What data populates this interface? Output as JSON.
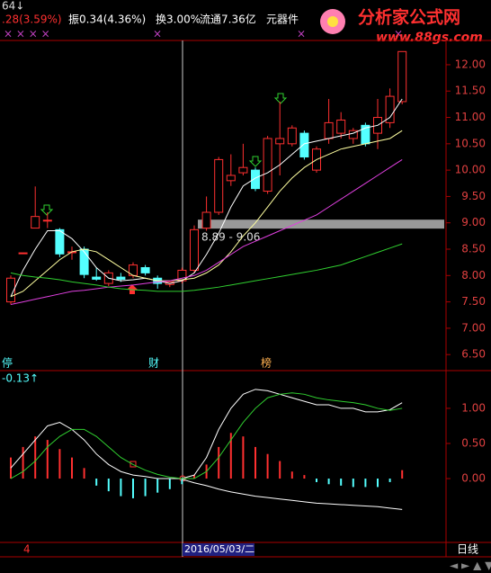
{
  "header": {
    "code": "64↓",
    "change": ".28(3.59%)",
    "amplitude": "振0.34(4.36%)",
    "turnover": "换3.00%",
    "float": "流通7.36亿",
    "sector": "元器件"
  },
  "watermark": {
    "title": "分析家公式网",
    "url": "www.88gs.com"
  },
  "chart_data": [
    {
      "type": "candlestick",
      "open": [
        7.5,
        8.43,
        8.9,
        9.05,
        8.87,
        8.45,
        8.5,
        7.97,
        7.85,
        7.97,
        8.0,
        8.15,
        7.95,
        7.83,
        7.9,
        8.1,
        8.9,
        9.2,
        9.8,
        9.95,
        10.0,
        9.6,
        10.5,
        10.5,
        10.7,
        10.0,
        10.6,
        10.7,
        10.6,
        10.85,
        10.7,
        10.9,
        11.3
      ],
      "high": [
        8.0,
        8.43,
        9.69,
        9.2,
        8.9,
        8.55,
        8.55,
        8.15,
        8.1,
        8.05,
        8.25,
        8.2,
        8.0,
        7.9,
        8.15,
        8.95,
        9.5,
        10.25,
        10.3,
        10.5,
        10.05,
        10.65,
        11.3,
        10.85,
        10.75,
        10.45,
        11.35,
        11.1,
        10.8,
        10.9,
        11.35,
        11.55,
        12.25
      ],
      "low": [
        7.45,
        8.43,
        8.9,
        8.9,
        8.35,
        8.3,
        7.95,
        7.9,
        7.8,
        7.88,
        7.95,
        8.0,
        7.75,
        7.78,
        7.85,
        8.05,
        8.85,
        9.15,
        9.7,
        9.9,
        9.6,
        9.55,
        9.9,
        10.45,
        10.2,
        9.95,
        10.5,
        10.6,
        10.5,
        10.45,
        10.4,
        10.8,
        11.25
      ],
      "close": [
        7.95,
        8.43,
        9.12,
        9.05,
        8.41,
        8.45,
        8.02,
        7.93,
        8.05,
        7.93,
        8.2,
        8.05,
        7.85,
        7.88,
        8.1,
        8.87,
        9.2,
        10.2,
        9.9,
        10.05,
        9.65,
        10.6,
        10.6,
        10.8,
        10.25,
        10.4,
        10.9,
        10.95,
        10.75,
        10.5,
        11.0,
        11.4,
        12.25
      ],
      "up_color": "#ff3030",
      "down_color": "#54ffff",
      "series": [
        {
          "color": "#ffffff",
          "values": [
            7.6,
            8.1,
            8.5,
            8.85,
            8.85,
            8.7,
            8.45,
            8.15,
            7.95,
            7.9,
            7.92,
            7.95,
            7.9,
            7.85,
            7.9,
            8.05,
            8.4,
            8.8,
            9.3,
            9.7,
            9.85,
            9.95,
            10.1,
            10.3,
            10.5,
            10.55,
            10.6,
            10.65,
            10.7,
            10.8,
            10.85,
            11.0,
            11.35
          ]
        },
        {
          "color": "#ffffa0",
          "values": [
            7.6,
            7.7,
            7.9,
            8.1,
            8.3,
            8.45,
            8.5,
            8.45,
            8.3,
            8.15,
            8.0,
            7.95,
            7.9,
            7.9,
            7.92,
            7.95,
            8.05,
            8.2,
            8.45,
            8.75,
            9.0,
            9.3,
            9.6,
            9.85,
            10.05,
            10.2,
            10.3,
            10.4,
            10.45,
            10.5,
            10.55,
            10.6,
            10.75
          ]
        },
        {
          "color": "#e040e0",
          "values": [
            7.45,
            7.5,
            7.55,
            7.6,
            7.65,
            7.7,
            7.72,
            7.75,
            7.78,
            7.8,
            7.82,
            7.85,
            7.88,
            7.9,
            7.95,
            8.0,
            8.1,
            8.25,
            8.4,
            8.55,
            8.65,
            8.75,
            8.85,
            8.95,
            9.05,
            9.15,
            9.3,
            9.45,
            9.6,
            9.75,
            9.9,
            10.05,
            10.2
          ]
        },
        {
          "color": "#30d030",
          "values": [
            8.05,
            8.0,
            7.97,
            7.95,
            7.92,
            7.88,
            7.85,
            7.82,
            7.78,
            7.75,
            7.73,
            7.72,
            7.7,
            7.7,
            7.7,
            7.72,
            7.75,
            7.78,
            7.82,
            7.86,
            7.9,
            7.94,
            7.98,
            8.02,
            8.06,
            8.1,
            8.15,
            8.2,
            8.28,
            8.36,
            8.44,
            8.52,
            8.6
          ]
        }
      ],
      "band": [
        8.89,
        9.06
      ],
      "annotation": "8.89 - 9.06",
      "ylim": [
        6.23,
        12.46
      ],
      "yticks": [
        {
          "value": 12,
          "label": "12.00"
        },
        {
          "value": 11.5,
          "label": "11.50"
        },
        {
          "value": 11,
          "label": "11.00"
        },
        {
          "value": 10.5,
          "label": "10.50"
        },
        {
          "value": 10,
          "label": "10.00"
        },
        {
          "value": 9.5,
          "label": "9.50"
        },
        {
          "value": 9,
          "label": "9.00"
        },
        {
          "value": 8.5,
          "label": "8.50"
        },
        {
          "value": 8,
          "label": "8.00"
        },
        {
          "value": 7.5,
          "label": "7.50"
        },
        {
          "value": 7,
          "label": "7.00"
        },
        {
          "value": 6.5,
          "label": "6.50"
        }
      ],
      "events": [
        "停",
        "财",
        "榜"
      ]
    },
    {
      "type": "macd",
      "title": "-0.13↑",
      "values": [
        0.3,
        0.45,
        0.6,
        0.55,
        0.42,
        0.3,
        0.15,
        -0.1,
        -0.18,
        -0.25,
        -0.28,
        -0.25,
        -0.2,
        -0.15,
        -0.08,
        0.05,
        0.2,
        0.45,
        0.65,
        0.6,
        0.45,
        0.35,
        0.25,
        0.1,
        0.05,
        -0.05,
        -0.08,
        -0.1,
        -0.12,
        -0.12,
        -0.12,
        -0.05,
        0.12
      ],
      "up_color": "#ff3030",
      "down_color": "#54ffff",
      "series": [
        {
          "color": "#ffffff",
          "values": [
            0.15,
            0.35,
            0.55,
            0.75,
            0.8,
            0.7,
            0.55,
            0.35,
            0.2,
            0.1,
            0.05,
            0.03,
            0.0,
            0.0,
            0.0,
            0.05,
            0.3,
            0.7,
            1.0,
            1.2,
            1.27,
            1.25,
            1.2,
            1.15,
            1.1,
            1.05,
            1.05,
            1.0,
            1.0,
            0.95,
            0.95,
            0.98,
            1.08
          ]
        },
        {
          "color": "#30d030",
          "values": [
            0.0,
            0.1,
            0.25,
            0.45,
            0.6,
            0.7,
            0.7,
            0.6,
            0.45,
            0.3,
            0.2,
            0.12,
            0.06,
            0.02,
            0.0,
            0.0,
            0.1,
            0.3,
            0.55,
            0.8,
            1.0,
            1.15,
            1.2,
            1.22,
            1.2,
            1.15,
            1.12,
            1.1,
            1.08,
            1.05,
            1.0,
            0.97,
            1.0
          ]
        },
        {
          "color": "#ffffff",
          "values": [
            null,
            null,
            null,
            null,
            null,
            null,
            null,
            null,
            null,
            null,
            null,
            null,
            null,
            null,
            -0.01,
            -0.06,
            -0.1,
            -0.15,
            -0.19,
            -0.22,
            -0.25,
            -0.27,
            -0.29,
            -0.31,
            -0.33,
            -0.35,
            -0.36,
            -0.37,
            -0.38,
            -0.39,
            -0.4,
            -0.42,
            -0.44
          ]
        }
      ],
      "ylim": [
        -0.87,
        1.46
      ],
      "yticks": [
        {
          "value": 1,
          "label": "1.00"
        },
        {
          "value": 0.5,
          "label": "0.50"
        },
        {
          "value": 0,
          "label": "0.00"
        }
      ]
    }
  ],
  "footer": {
    "left": "4",
    "date": "2016/05/03/二",
    "period": "日线"
  }
}
